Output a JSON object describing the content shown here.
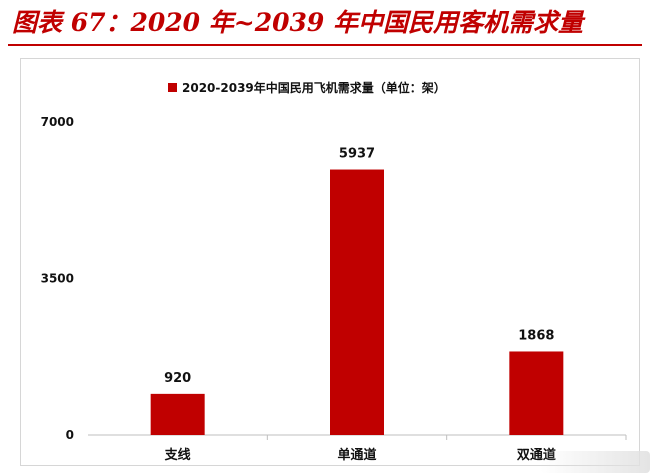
{
  "figure_title": "图表 67：2020 年~2039 年中国民用客机需求量",
  "colors": {
    "accent": "#c00000",
    "bar": "#c00000",
    "text": "#111111",
    "axis": "#bfbfbf"
  },
  "chart_data": {
    "type": "bar",
    "title": "",
    "xlabel": "",
    "ylabel": "",
    "ylim": [
      0,
      7000
    ],
    "yticks": [
      0,
      3500,
      7000
    ],
    "legend_position": "top-center",
    "grid": false,
    "categories": [
      "支线",
      "单通道",
      "双通道"
    ],
    "series": [
      {
        "name": "2020-2039年中国民用飞机需求量（单位：架）",
        "values": [
          920,
          5937,
          1868
        ]
      }
    ]
  }
}
